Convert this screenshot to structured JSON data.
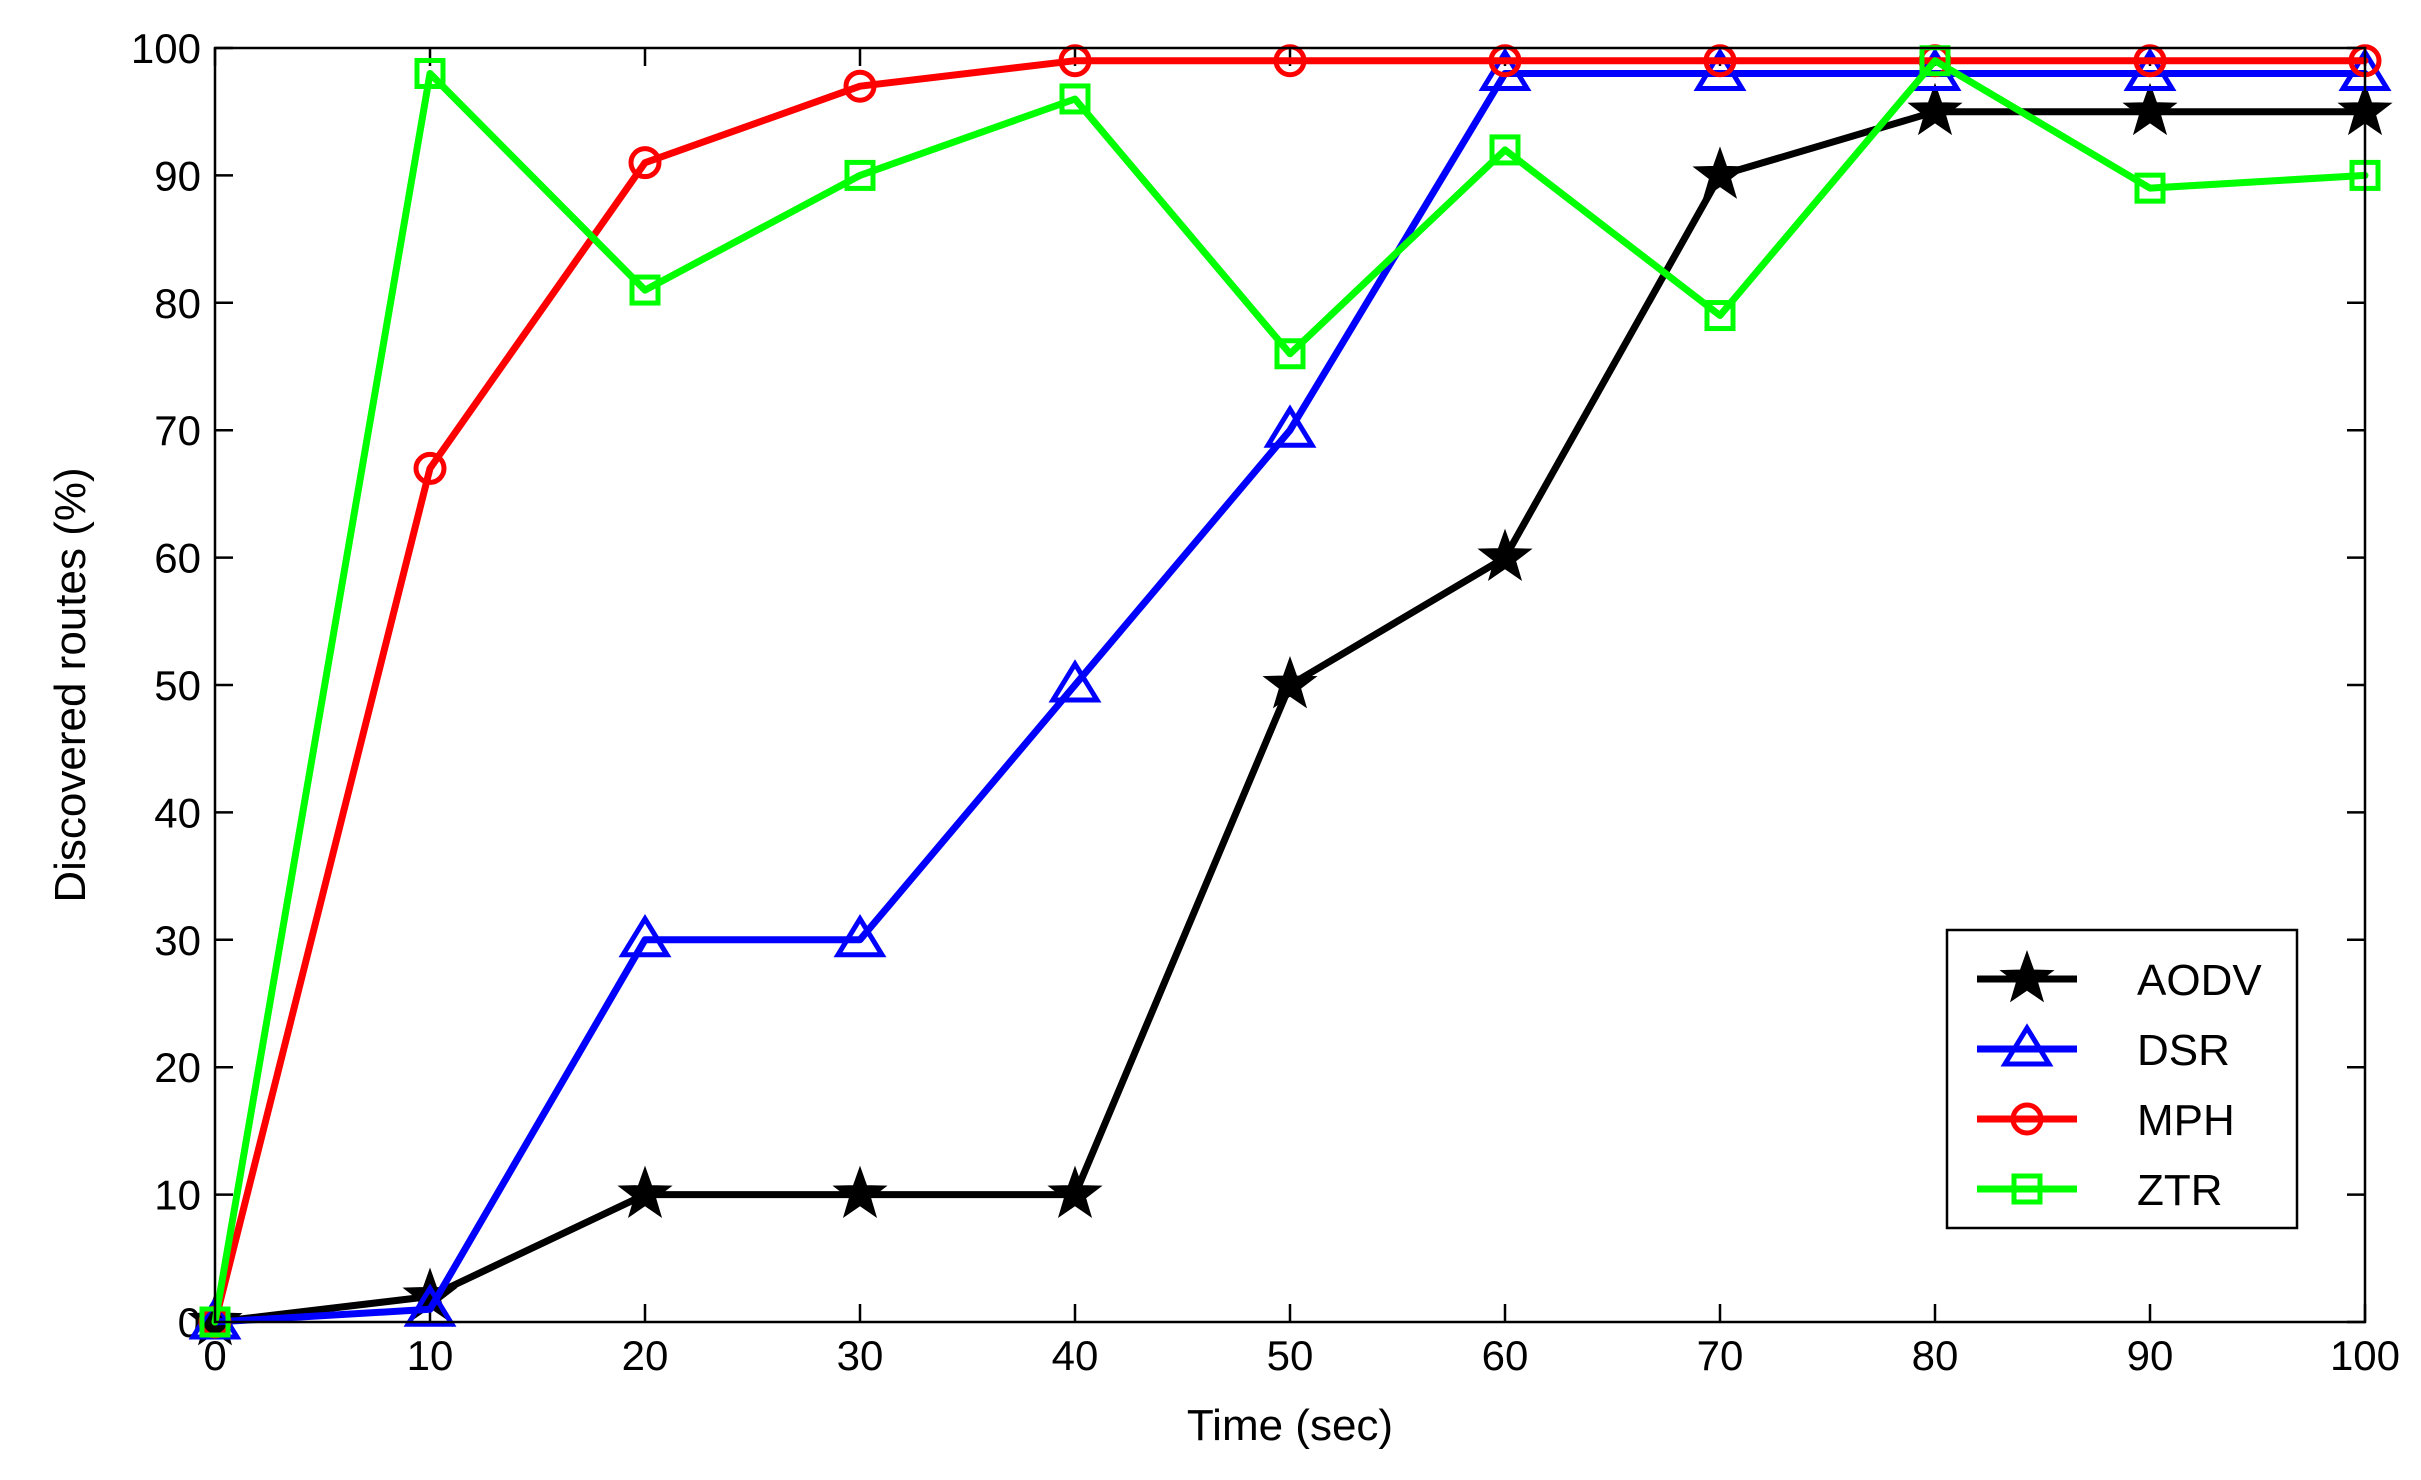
{
  "chart_data": {
    "type": "line",
    "title": "",
    "xlabel": "Time (sec)",
    "ylabel": "Discovered routes (%)",
    "xlim": [
      0,
      100
    ],
    "ylim": [
      0,
      100
    ],
    "xticks": [
      0,
      10,
      20,
      30,
      40,
      50,
      60,
      70,
      80,
      90,
      100
    ],
    "yticks": [
      0,
      10,
      20,
      30,
      40,
      50,
      60,
      70,
      80,
      90,
      100
    ],
    "x": [
      0,
      10,
      20,
      30,
      40,
      50,
      60,
      70,
      80,
      90,
      100
    ],
    "grid": false,
    "legend_position": "lower-right",
    "series": [
      {
        "name": "AODV",
        "color": "#000000",
        "marker": "star",
        "values": [
          0,
          2,
          10,
          10,
          10,
          50,
          60,
          90,
          95,
          95,
          95
        ]
      },
      {
        "name": "DSR",
        "color": "#0000ff",
        "marker": "triangle",
        "values": [
          0,
          1,
          30,
          30,
          50,
          70,
          98,
          98,
          98,
          98,
          98
        ]
      },
      {
        "name": "MPH",
        "color": "#ff0000",
        "marker": "circle",
        "values": [
          0,
          67,
          91,
          97,
          99,
          99,
          99,
          99,
          99,
          99,
          99
        ]
      },
      {
        "name": "ZTR",
        "color": "#00ff00",
        "marker": "square",
        "values": [
          0,
          98,
          81,
          90,
          96,
          76,
          92,
          79,
          99,
          89,
          90
        ]
      }
    ]
  }
}
